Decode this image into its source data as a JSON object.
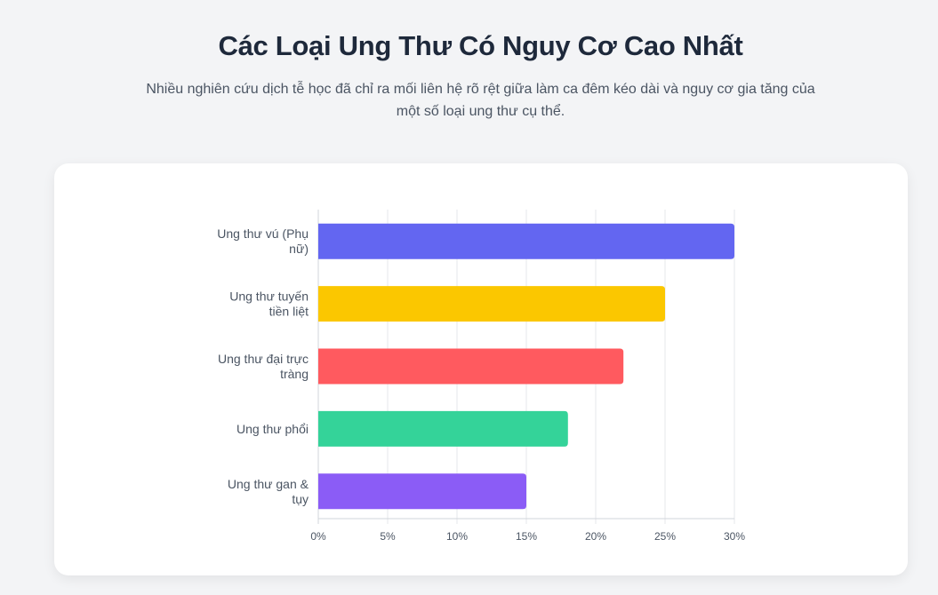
{
  "header": {
    "title": "Các Loại Ung Thư Có Nguy Cơ Cao Nhất",
    "subtitle": "Nhiều nghiên cứu dịch tễ học đã chỉ ra mối liên hệ rõ rệt giữa làm ca đêm kéo dài và nguy cơ gia tăng của một số loại ung thư cụ thể."
  },
  "chart_data": {
    "type": "bar",
    "orientation": "horizontal",
    "categories": [
      [
        "Ung thư vú (Phụ",
        "nữ)"
      ],
      [
        "Ung thư tuyến",
        "tiền liệt"
      ],
      [
        "Ung thư đại trực",
        "tràng"
      ],
      [
        "Ung thư phổi"
      ],
      [
        "Ung thư gan &",
        "tụy"
      ]
    ],
    "values": [
      30,
      25,
      22,
      18,
      15
    ],
    "colors": [
      "#6366f1",
      "#fbc700",
      "#ff5a5f",
      "#34d399",
      "#8b5cf6"
    ],
    "xlim": [
      0,
      30
    ],
    "xticks": [
      0,
      5,
      10,
      15,
      20,
      25,
      30
    ],
    "tick_format": "percent",
    "grid": true,
    "legend": "none"
  }
}
